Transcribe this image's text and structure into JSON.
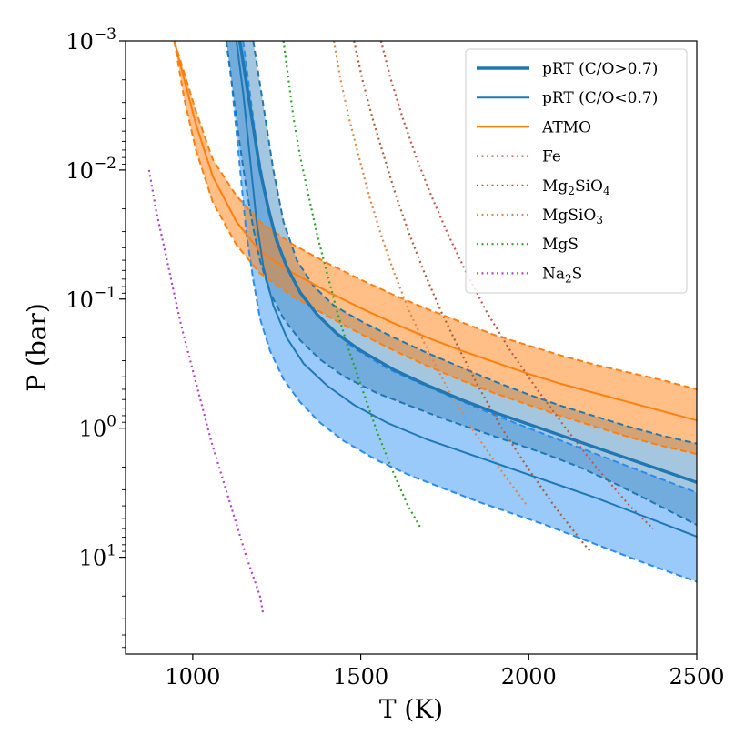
{
  "chart_data": {
    "type": "line",
    "title": "",
    "xlabel": "T (K)",
    "ylabel": "P (bar)",
    "xlim": [
      800,
      2500
    ],
    "ylim_log10": [
      1.75,
      -3
    ],
    "y_scale": "log",
    "y_inverted": true,
    "x_ticks": [
      1000,
      1500,
      2000,
      2500
    ],
    "x_tick_labels": [
      "1000",
      "1500",
      "2000",
      "2500"
    ],
    "y_ticks_log10": [
      -3,
      -2,
      -1,
      0,
      1
    ],
    "y_tick_labels": [
      {
        "base": "10",
        "exp": "−3"
      },
      {
        "base": "10",
        "exp": "−2"
      },
      {
        "base": "10",
        "exp": "−1"
      },
      {
        "base": "10",
        "exp": "0"
      },
      {
        "base": "10",
        "exp": "1"
      }
    ],
    "legend": {
      "location": "top-right",
      "entries": [
        {
          "key": "pRT_high",
          "main": "pRT (C/O>0.7)",
          "color": "#1f77b4",
          "style": "thick-solid"
        },
        {
          "key": "pRT_low",
          "main": "pRT (C/O<0.7)",
          "color": "#1f77b4",
          "style": "solid"
        },
        {
          "key": "ATMO",
          "main": "ATMO",
          "color": "#ff7f0e",
          "style": "solid"
        },
        {
          "key": "Fe",
          "main": "Fe",
          "color": "#c1584b",
          "style": "dotted"
        },
        {
          "key": "Mg2SiO4",
          "main": "Mg",
          "sub1": "2",
          "main2": "SiO",
          "sub2": "4",
          "color": "#a9603a",
          "style": "dotted"
        },
        {
          "key": "MgSiO3",
          "main": "MgSiO",
          "sub1": "3",
          "color": "#e0884a",
          "style": "dotted"
        },
        {
          "key": "MgS",
          "main": "MgS",
          "color": "#2ca02c",
          "style": "dotted"
        },
        {
          "key": "Na2S",
          "main": "Na",
          "sub1": "2",
          "main2": "S",
          "color": "#b040d0",
          "style": "dotted"
        }
      ]
    },
    "colors": {
      "prt_line": "#1f77b4",
      "prt_high_fill": "#4a8ebe",
      "prt_low_fill": "#2a90f4",
      "prt_low_edge": "#2a8cf0",
      "atmo_line": "#ff7f0e",
      "atmo_fill": "#ff7f0e"
    },
    "series": [
      {
        "name": "ATMO",
        "x": [
          945,
          975,
          1010,
          1060,
          1130,
          1200,
          1300,
          1400,
          1500,
          1600,
          1700,
          1800,
          1900,
          2000,
          2100,
          2200,
          2300,
          2400,
          2500
        ],
        "median_log10P": [
          -3.0,
          -2.7,
          -2.35,
          -1.95,
          -1.6,
          -1.37,
          -1.2,
          -1.06,
          -0.93,
          -0.81,
          -0.7,
          -0.6,
          -0.51,
          -0.42,
          -0.34,
          -0.27,
          -0.2,
          -0.13,
          -0.06
        ],
        "lower_log10P": [
          -3.0,
          -2.75,
          -2.45,
          -2.08,
          -1.8,
          -1.6,
          -1.42,
          -1.28,
          -1.15,
          -1.03,
          -0.92,
          -0.82,
          -0.72,
          -0.64,
          -0.56,
          -0.49,
          -0.43,
          -0.37,
          -0.3
        ],
        "upper_log10P": [
          -3.0,
          -2.55,
          -2.15,
          -1.75,
          -1.42,
          -1.2,
          -1.02,
          -0.87,
          -0.73,
          -0.6,
          -0.48,
          -0.37,
          -0.27,
          -0.18,
          -0.09,
          -0.01,
          0.07,
          0.14,
          0.2
        ]
      },
      {
        "name": "pRT (C/O>0.7)",
        "median": {
          "x": [
            1140,
            1170,
            1200,
            1225,
            1250,
            1280,
            1320,
            1370,
            1430,
            1500,
            1600,
            1700,
            1800,
            1900,
            2000,
            2100,
            2200,
            2300,
            2400,
            2500
          ],
          "log10P": [
            -3.0,
            -2.5,
            -2.0,
            -1.7,
            -1.45,
            -1.25,
            -1.05,
            -0.88,
            -0.73,
            -0.6,
            -0.45,
            -0.33,
            -0.22,
            -0.12,
            -0.03,
            0.06,
            0.15,
            0.24,
            0.33,
            0.42
          ]
        },
        "band_lower": {
          "x": [
            1180,
            1210,
            1240,
            1270,
            1310,
            1360,
            1420,
            1500,
            1600,
            1700,
            1800,
            1900,
            2000,
            2100,
            2200,
            2300,
            2400,
            2500
          ],
          "log10P": [
            -3.0,
            -2.5,
            -2.0,
            -1.6,
            -1.3,
            -1.1,
            -0.95,
            -0.83,
            -0.7,
            -0.58,
            -0.47,
            -0.36,
            -0.26,
            -0.17,
            -0.09,
            -0.01,
            0.06,
            0.12
          ]
        },
        "band_upper": {
          "x": [
            1100,
            1120,
            1140,
            1160,
            1180,
            1200,
            1230,
            1270,
            1320,
            1380,
            1450,
            1550,
            1650,
            1750,
            1850,
            1950,
            2050,
            2150,
            2250,
            2350,
            2500
          ],
          "log10P": [
            -3.0,
            -2.6,
            -2.2,
            -1.85,
            -1.55,
            -1.3,
            -1.05,
            -0.85,
            -0.68,
            -0.53,
            -0.4,
            -0.27,
            -0.17,
            -0.07,
            0.02,
            0.11,
            0.2,
            0.3,
            0.42,
            0.55,
            0.75
          ]
        }
      },
      {
        "name": "pRT (C/O<0.7)",
        "median": {
          "x": [
            1130,
            1150,
            1170,
            1190,
            1210,
            1240,
            1280,
            1330,
            1400,
            1480,
            1580,
            1700,
            1800,
            1900,
            2000,
            2100,
            2200,
            2300,
            2400,
            2500
          ],
          "log10P": [
            -3.0,
            -2.6,
            -2.1,
            -1.6,
            -1.25,
            -0.95,
            -0.7,
            -0.5,
            -0.33,
            -0.18,
            -0.04,
            0.09,
            0.18,
            0.27,
            0.36,
            0.45,
            0.54,
            0.64,
            0.74,
            0.84
          ]
        },
        "band_lower": {
          "x": [
            1100,
            1115,
            1130,
            1145,
            1160,
            1180,
            1200,
            1230,
            1270,
            1320,
            1380,
            1450,
            1550,
            1650,
            1750,
            1850,
            1950,
            2050,
            2150,
            2250,
            2350,
            2500
          ],
          "log10P": [
            -3.0,
            -2.7,
            -2.3,
            -1.9,
            -1.5,
            -1.15,
            -0.85,
            -0.6,
            -0.38,
            -0.2,
            -0.04,
            0.1,
            0.25,
            0.37,
            0.47,
            0.57,
            0.66,
            0.75,
            0.85,
            0.95,
            1.05,
            1.19
          ]
        },
        "band_upper": {
          "x": [
            1150,
            1170,
            1190,
            1210,
            1240,
            1280,
            1330,
            1400,
            1480,
            1580,
            1700,
            1800,
            1900,
            2000,
            2100,
            2200,
            2300,
            2400,
            2500
          ],
          "log10P": [
            -3.0,
            -2.6,
            -2.2,
            -1.9,
            -1.55,
            -1.25,
            -1.0,
            -0.8,
            -0.62,
            -0.46,
            -0.32,
            -0.21,
            -0.1,
            0.0,
            0.1,
            0.2,
            0.3,
            0.4,
            0.5
          ]
        }
      }
    ],
    "condensation_curves": [
      {
        "key": "Fe",
        "x": [
          1560,
          1590,
          1625,
          1665,
          1710,
          1760,
          1815,
          1875,
          1945,
          2025,
          2110,
          2200,
          2300,
          2370
        ],
        "log10P": [
          -3.0,
          -2.7,
          -2.4,
          -2.1,
          -1.8,
          -1.5,
          -1.2,
          -0.9,
          -0.6,
          -0.3,
          0.0,
          0.3,
          0.6,
          0.78
        ],
        "color": "#c1584b"
      },
      {
        "key": "Mg2SiO4",
        "x": [
          1480,
          1505,
          1535,
          1570,
          1605,
          1645,
          1690,
          1740,
          1795,
          1855,
          1920,
          1995,
          2075,
          2165,
          2185
        ],
        "log10P": [
          -3.0,
          -2.7,
          -2.4,
          -2.1,
          -1.8,
          -1.5,
          -1.2,
          -0.9,
          -0.6,
          -0.3,
          0.0,
          0.3,
          0.6,
          0.9,
          0.96
        ],
        "color": "#a9603a"
      },
      {
        "key": "MgSiO3",
        "x": [
          1420,
          1440,
          1465,
          1495,
          1525,
          1560,
          1600,
          1645,
          1700,
          1760,
          1830,
          1910,
          1995
        ],
        "log10P": [
          -3.0,
          -2.7,
          -2.4,
          -2.1,
          -1.8,
          -1.5,
          -1.2,
          -0.9,
          -0.6,
          -0.3,
          0.0,
          0.3,
          0.6
        ],
        "color": "#e0884a"
      },
      {
        "key": "MgS",
        "x": [
          1270,
          1285,
          1300,
          1320,
          1345,
          1370,
          1400,
          1430,
          1465,
          1505,
          1545,
          1590,
          1640,
          1680
        ],
        "log10P": [
          -3.0,
          -2.7,
          -2.4,
          -2.1,
          -1.8,
          -1.5,
          -1.2,
          -0.9,
          -0.6,
          -0.3,
          0.0,
          0.3,
          0.6,
          0.78
        ],
        "color": "#2ca02c"
      },
      {
        "key": "Na2S",
        "x": [
          870,
          890,
          915,
          940,
          965,
          995,
          1025,
          1055,
          1090,
          1125,
          1160,
          1200,
          1210
        ],
        "log10P": [
          -2.0,
          -1.7,
          -1.4,
          -1.1,
          -0.8,
          -0.5,
          -0.2,
          0.1,
          0.4,
          0.7,
          1.0,
          1.3,
          1.45
        ],
        "color": "#b040d0"
      }
    ]
  }
}
